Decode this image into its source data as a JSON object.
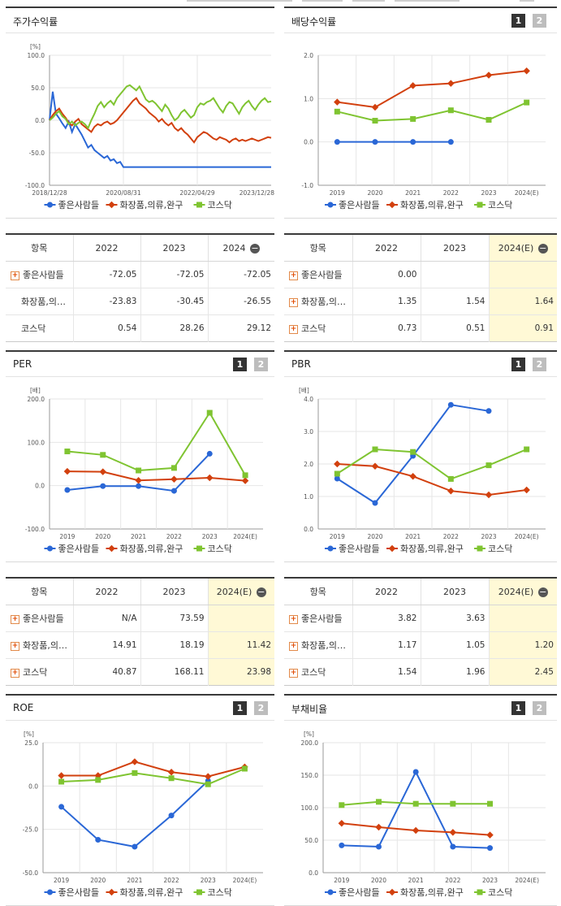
{
  "colors": {
    "series1": "#2a67d6",
    "series2": "#d2400e",
    "series3": "#7fc431",
    "highlight": "#fff9d6",
    "title_border": "#3a3a3a"
  },
  "legend": {
    "s1": "좋은사람들",
    "s2": "화장품,의류,완구",
    "s3": "코스닥"
  },
  "panels": {
    "return": {
      "title": "주가수익률"
    },
    "dividend": {
      "title": "배당수익률",
      "btn1": "1",
      "btn2": "2"
    },
    "per": {
      "title": "PER",
      "btn1": "1",
      "btn2": "2"
    },
    "pbr": {
      "title": "PBR",
      "btn1": "1",
      "btn2": "2"
    },
    "roe": {
      "title": "ROE",
      "btn1": "1",
      "btn2": "2"
    },
    "debt": {
      "title": "부채비율",
      "btn1": "1",
      "btn2": "2"
    }
  },
  "tables": {
    "return": {
      "headers": [
        "항목",
        "2022",
        "2023",
        "2024"
      ],
      "rows": [
        {
          "name": "좋은사람들",
          "v": [
            "-72.05",
            "-72.05",
            "-72.05"
          ],
          "plus": true
        },
        {
          "name": "화장품,의…",
          "v": [
            "-23.83",
            "-30.45",
            "-26.55"
          ],
          "plus": false
        },
        {
          "name": "코스닥",
          "v": [
            "0.54",
            "28.26",
            "29.12"
          ],
          "plus": false
        }
      ]
    },
    "dividend": {
      "headers": [
        "항목",
        "2022",
        "2023",
        "2024(E)"
      ],
      "rows": [
        {
          "name": "좋은사람들",
          "v": [
            "0.00",
            "",
            ""
          ],
          "plus": true
        },
        {
          "name": "화장품,의…",
          "v": [
            "1.35",
            "1.54",
            "1.64"
          ],
          "plus": true
        },
        {
          "name": "코스닥",
          "v": [
            "0.73",
            "0.51",
            "0.91"
          ],
          "plus": true
        }
      ]
    },
    "per": {
      "headers": [
        "항목",
        "2022",
        "2023",
        "2024(E)"
      ],
      "rows": [
        {
          "name": "좋은사람들",
          "v": [
            "N/A",
            "73.59",
            ""
          ],
          "plus": true
        },
        {
          "name": "화장품,의…",
          "v": [
            "14.91",
            "18.19",
            "11.42"
          ],
          "plus": true
        },
        {
          "name": "코스닥",
          "v": [
            "40.87",
            "168.11",
            "23.98"
          ],
          "plus": true
        }
      ]
    },
    "pbr": {
      "headers": [
        "항목",
        "2022",
        "2023",
        "2024(E)"
      ],
      "rows": [
        {
          "name": "좋은사람들",
          "v": [
            "3.82",
            "3.63",
            ""
          ],
          "plus": true
        },
        {
          "name": "화장품,의…",
          "v": [
            "1.17",
            "1.05",
            "1.20"
          ],
          "plus": true
        },
        {
          "name": "코스닥",
          "v": [
            "1.54",
            "1.96",
            "2.45"
          ],
          "plus": true
        }
      ]
    }
  },
  "chart_data": [
    {
      "id": "return",
      "type": "line",
      "title": "주가수익률",
      "yunit": "[%]",
      "ylim": [
        -100,
        100
      ],
      "yticks": [
        "100.0",
        "50.0",
        "0.0",
        "-50.0",
        "-100.0"
      ],
      "xtick_labels": [
        "2018/12/28",
        "2020/08/31",
        "2022/04/29",
        "2023/12/28"
      ],
      "series": [
        {
          "name": "좋은사람들",
          "values": [
            0,
            44,
            10,
            3,
            -5,
            -12,
            -2,
            -18,
            -6,
            -14,
            -22,
            -32,
            -42,
            -38,
            -46,
            -50,
            -54,
            -58,
            -55,
            -62,
            -60,
            -66,
            -64,
            -72,
            -72,
            -72,
            -72,
            -72,
            -72,
            -72,
            -72,
            -72,
            -72,
            -72,
            -72,
            -72,
            -72,
            -72,
            -72,
            -72,
            -72,
            -72,
            -72,
            -72,
            -72,
            -72,
            -72,
            -72,
            -72,
            -72,
            -72,
            -72,
            -72,
            -72,
            -72,
            -72,
            -72,
            -72,
            -72,
            -72,
            -72,
            -72,
            -72,
            -72,
            -72,
            -72,
            -72,
            -72,
            -72,
            -72
          ]
        },
        {
          "name": "화장품,의류,완구",
          "values": [
            0,
            8,
            14,
            18,
            10,
            4,
            -4,
            -8,
            -2,
            2,
            -6,
            -10,
            -14,
            -18,
            -10,
            -6,
            -8,
            -4,
            -2,
            -6,
            -4,
            0,
            6,
            12,
            18,
            24,
            30,
            34,
            26,
            22,
            18,
            12,
            8,
            4,
            -2,
            2,
            -4,
            -8,
            -4,
            -12,
            -16,
            -12,
            -18,
            -22,
            -28,
            -34,
            -26,
            -22,
            -18,
            -20,
            -24,
            -28,
            -30,
            -26,
            -28,
            -30,
            -34,
            -30,
            -28,
            -32,
            -30,
            -32,
            -30,
            -28,
            -30,
            -32,
            -30,
            -28,
            -26,
            -27
          ]
        },
        {
          "name": "코스닥",
          "values": [
            0,
            4,
            10,
            14,
            6,
            2,
            -6,
            -2,
            -8,
            -4,
            -2,
            -6,
            -12,
            0,
            10,
            22,
            28,
            20,
            26,
            30,
            24,
            34,
            40,
            46,
            52,
            54,
            50,
            46,
            52,
            42,
            32,
            28,
            30,
            26,
            20,
            14,
            24,
            18,
            8,
            0,
            4,
            12,
            16,
            10,
            4,
            8,
            20,
            26,
            24,
            28,
            30,
            34,
            26,
            18,
            12,
            22,
            28,
            26,
            18,
            10,
            20,
            26,
            30,
            22,
            16,
            24,
            30,
            34,
            28,
            29
          ]
        }
      ]
    },
    {
      "id": "dividend",
      "type": "line",
      "title": "배당수익률",
      "ylim": [
        -1,
        2
      ],
      "yticks": [
        "2.0",
        "1.0",
        "0.0",
        "-1.0"
      ],
      "categories": [
        "2019",
        "2020",
        "2021",
        "2022",
        "2023",
        "2024(E)"
      ],
      "series": [
        {
          "name": "좋은사람들",
          "values": [
            0,
            0,
            0,
            0,
            null,
            null
          ]
        },
        {
          "name": "화장품,의류,완구",
          "values": [
            0.92,
            0.8,
            1.3,
            1.35,
            1.54,
            1.64
          ]
        },
        {
          "name": "코스닥",
          "values": [
            0.7,
            0.49,
            0.53,
            0.73,
            0.51,
            0.91
          ]
        }
      ]
    },
    {
      "id": "per",
      "type": "line",
      "title": "PER",
      "yunit": "[배]",
      "ylim": [
        -100,
        200
      ],
      "yticks": [
        "200.0",
        "100.0",
        "0.0",
        "-100.0"
      ],
      "categories": [
        "2019",
        "2020",
        "2021",
        "2022",
        "2023",
        "2024(E)"
      ],
      "series": [
        {
          "name": "좋은사람들",
          "values": [
            -10,
            -1,
            -1,
            -12,
            73.59,
            null
          ]
        },
        {
          "name": "화장품,의류,완구",
          "values": [
            33,
            32,
            12,
            14.91,
            18.19,
            11.42
          ]
        },
        {
          "name": "코스닥",
          "values": [
            79,
            71,
            35,
            40.87,
            168.11,
            23.98
          ]
        }
      ]
    },
    {
      "id": "pbr",
      "type": "line",
      "title": "PBR",
      "yunit": "[배]",
      "ylim": [
        0,
        4
      ],
      "yticks": [
        "4.0",
        "3.0",
        "2.0",
        "1.0",
        "0.0"
      ],
      "categories": [
        "2019",
        "2020",
        "2021",
        "2022",
        "2023",
        "2024(E)"
      ],
      "series": [
        {
          "name": "좋은사람들",
          "values": [
            1.55,
            0.8,
            2.25,
            3.82,
            3.63,
            null
          ]
        },
        {
          "name": "화장품,의류,완구",
          "values": [
            2.0,
            1.93,
            1.62,
            1.17,
            1.05,
            1.2
          ]
        },
        {
          "name": "코스닥",
          "values": [
            1.7,
            2.45,
            2.37,
            1.54,
            1.96,
            2.45
          ]
        }
      ]
    },
    {
      "id": "roe",
      "type": "line",
      "title": "ROE",
      "yunit": "[%]",
      "ylim": [
        -50,
        25
      ],
      "yticks": [
        "25.0",
        "0.0",
        "-25.0",
        "-50.0"
      ],
      "categories": [
        "2019",
        "2020",
        "2021",
        "2022",
        "2023",
        "2024(E)"
      ],
      "series": [
        {
          "name": "좋은사람들",
          "values": [
            -12,
            -31,
            -35,
            -17,
            3,
            null
          ]
        },
        {
          "name": "화장품,의류,완구",
          "values": [
            6,
            6,
            14,
            8,
            5.5,
            11
          ]
        },
        {
          "name": "코스닥",
          "values": [
            2.5,
            3.5,
            7.5,
            4.5,
            1,
            10
          ]
        }
      ]
    },
    {
      "id": "debt",
      "type": "line",
      "title": "부채비율",
      "yunit": "[%]",
      "ylim": [
        0,
        200
      ],
      "yticks": [
        "200.0",
        "150.0",
        "100.0",
        "50.0",
        "0.0"
      ],
      "categories": [
        "2019",
        "2020",
        "2021",
        "2022",
        "2023",
        "2024(E)"
      ],
      "series": [
        {
          "name": "좋은사람들",
          "values": [
            42,
            40,
            155,
            40,
            38,
            null
          ]
        },
        {
          "name": "화장품,의류,완구",
          "values": [
            76,
            70,
            65,
            62,
            58,
            null
          ]
        },
        {
          "name": "코스닥",
          "values": [
            104,
            109,
            106,
            106,
            106,
            null
          ]
        }
      ]
    }
  ]
}
